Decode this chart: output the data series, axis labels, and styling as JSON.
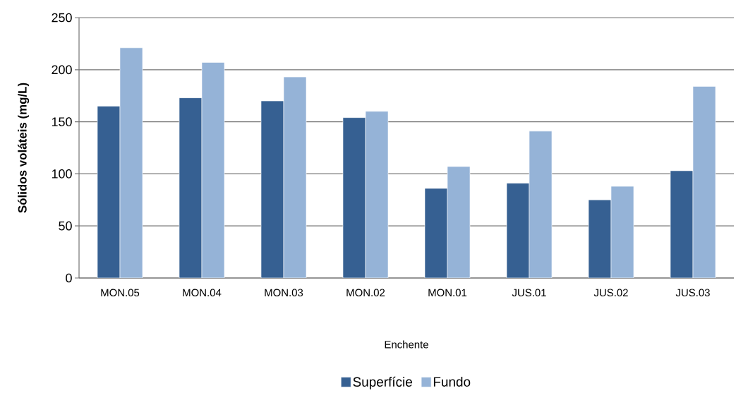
{
  "chart_data": {
    "type": "bar",
    "xlabel": "Enchente",
    "ylabel": "Sólidos voláteis (mg/L)",
    "categories": [
      "MON.05",
      "MON.04",
      "MON.03",
      "MON.02",
      "MON.01",
      "JUS.01",
      "JUS.02",
      "JUS.03"
    ],
    "series": [
      {
        "name": "Superfície",
        "color": "#366092",
        "values": [
          165,
          173,
          170,
          154,
          86,
          91,
          75,
          103
        ]
      },
      {
        "name": "Fundo",
        "color": "#95b3d7",
        "values": [
          221,
          207,
          193,
          160,
          107,
          141,
          88,
          184
        ]
      }
    ],
    "ylim": [
      0,
      250
    ],
    "yticks": [
      0,
      50,
      100,
      150,
      200,
      250
    ],
    "grid": "y",
    "legend": "bottom"
  }
}
